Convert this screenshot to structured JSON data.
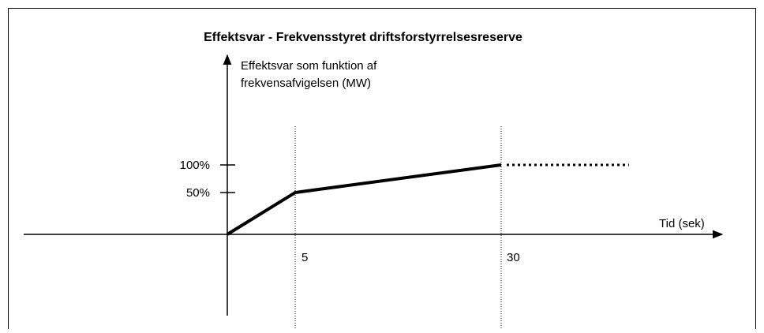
{
  "title": "Effektsvar - Frekvensstyret driftsforstyrrelsesreserve",
  "y_axis": {
    "label_lines": [
      "Effektsvar som funktion af",
      "frekvensafvigelsen (MW)"
    ],
    "ticks": [
      "100%",
      "50%"
    ]
  },
  "x_axis": {
    "label": "Tid (sek)",
    "ticks": [
      "5",
      "30"
    ]
  }
}
